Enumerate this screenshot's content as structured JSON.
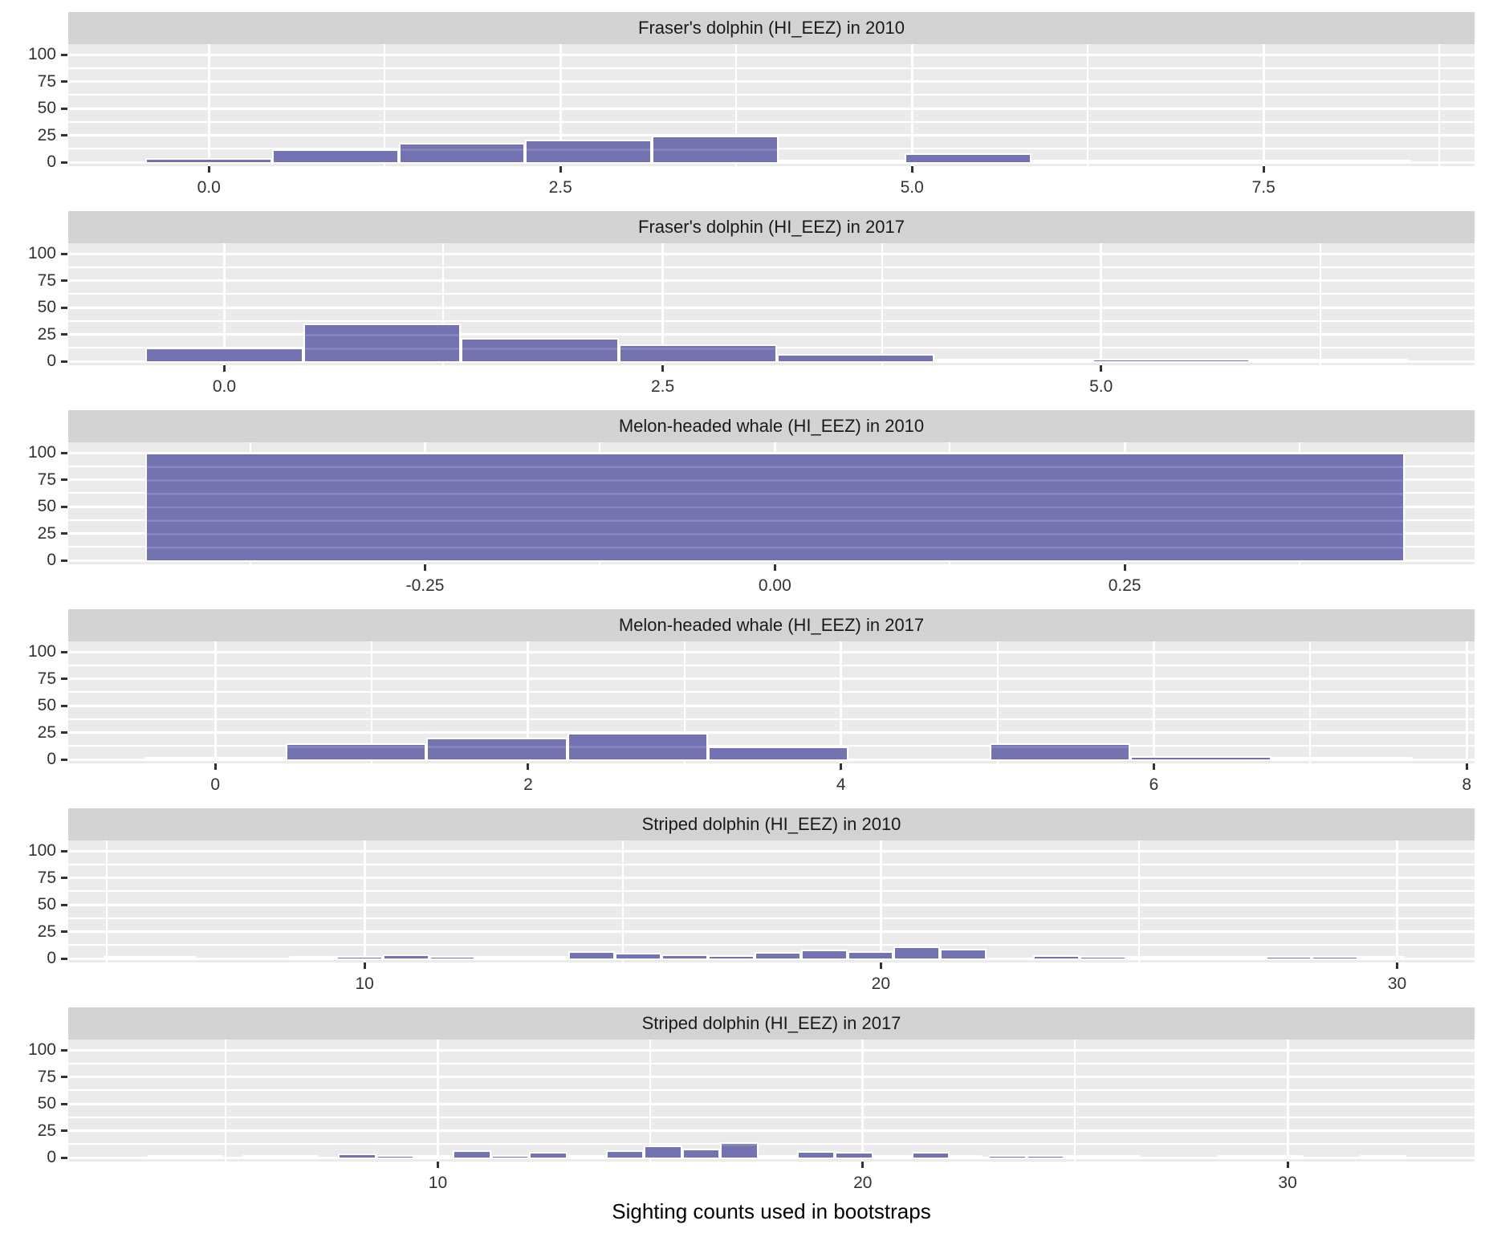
{
  "chart_data": {
    "type": "bar",
    "subtype": "faceted_histogram",
    "title": "",
    "xlabel": "Sighting counts used in bootstraps",
    "ylabel": "",
    "legend": "none",
    "grid": "on",
    "bin_width": 0.9,
    "ylim": [
      -6,
      107
    ],
    "y_ticks": [
      0,
      25,
      50,
      75,
      100
    ],
    "y_tick_labels": [
      "0",
      "25",
      "50",
      "75",
      "100"
    ],
    "y_minor_gridlines": [
      12.5,
      37.5,
      62.5,
      87.5
    ],
    "colors": {
      "bar_fill": "#7473b2",
      "bar_fill_gridline_showthrough": "#8b8abf",
      "bar_outline": "#ffffff",
      "panel_background": "#ebebeb",
      "strip_background": "#d3d3d3",
      "gridline": "#ffffff",
      "axis_text": "#333333",
      "strip_text": "#1a1a1a",
      "axis_title_text": "#000000"
    },
    "panels": [
      {
        "title": "Fraser's dolphin (HI_EEZ) in 2010",
        "xlim": [
          -1.0,
          9.0
        ],
        "x_ticks": [
          {
            "value": 0.0,
            "label": "0.0"
          },
          {
            "value": 2.5,
            "label": "2.5"
          },
          {
            "value": 5.0,
            "label": "5.0"
          },
          {
            "value": 7.5,
            "label": "7.5"
          }
        ],
        "bars": [
          {
            "center": 0.0,
            "count": 4
          },
          {
            "center": 0.9,
            "count": 12
          },
          {
            "center": 1.8,
            "count": 18
          },
          {
            "center": 2.7,
            "count": 21
          },
          {
            "center": 3.6,
            "count": 25
          },
          {
            "center": 5.4,
            "count": 8
          }
        ],
        "zero_runs": [
          [
            4.05,
            4.95
          ],
          [
            5.85,
            8.55
          ]
        ]
      },
      {
        "title": "Fraser's dolphin (HI_EEZ) in 2017",
        "xlim": [
          -0.89,
          7.13
        ],
        "x_ticks": [
          {
            "value": 0.0,
            "label": "0.0"
          },
          {
            "value": 2.5,
            "label": "2.5"
          },
          {
            "value": 5.0,
            "label": "5.0"
          }
        ],
        "bars": [
          {
            "center": 0.0,
            "count": 13
          },
          {
            "center": 0.9,
            "count": 35
          },
          {
            "center": 1.8,
            "count": 22
          },
          {
            "center": 2.7,
            "count": 16
          },
          {
            "center": 3.6,
            "count": 7
          },
          {
            "center": 5.4,
            "count": 2
          }
        ],
        "zero_runs": [
          [
            4.05,
            4.95
          ],
          [
            5.85,
            6.75
          ]
        ]
      },
      {
        "title": "Melon-headed whale (HI_EEZ) in 2010",
        "xlim": [
          -0.505,
          0.5
        ],
        "x_ticks": [
          {
            "value": -0.25,
            "label": "-0.25"
          },
          {
            "value": 0.0,
            "label": "0.00"
          },
          {
            "value": 0.25,
            "label": "0.25"
          }
        ],
        "bars": [
          {
            "center": 0.0,
            "count": 100
          }
        ],
        "zero_runs": []
      },
      {
        "title": "Melon-headed whale (HI_EEZ) in 2017",
        "xlim": [
          -0.94,
          8.05
        ],
        "x_ticks": [
          {
            "value": 0,
            "label": "0"
          },
          {
            "value": 2,
            "label": "2"
          },
          {
            "value": 4,
            "label": "4"
          },
          {
            "value": 6,
            "label": "6"
          },
          {
            "value": 8,
            "label": "8"
          }
        ],
        "bars": [
          {
            "center": 0.9,
            "count": 15
          },
          {
            "center": 1.8,
            "count": 20
          },
          {
            "center": 2.7,
            "count": 25
          },
          {
            "center": 3.6,
            "count": 12
          },
          {
            "center": 5.4,
            "count": 15
          },
          {
            "center": 6.3,
            "count": 3
          }
        ],
        "zero_runs": [
          [
            -0.45,
            0.45
          ],
          [
            6.75,
            7.65
          ]
        ]
      },
      {
        "title": "Striped dolphin (HI_EEZ) in 2010",
        "xlim": [
          4.26,
          31.5
        ],
        "x_ticks": [
          {
            "value": 10,
            "label": "10"
          },
          {
            "value": 20,
            "label": "20"
          },
          {
            "value": 30,
            "label": "30"
          }
        ],
        "bars": [
          {
            "center": 9.9,
            "count": 2
          },
          {
            "center": 10.8,
            "count": 4
          },
          {
            "center": 11.7,
            "count": 2
          },
          {
            "center": 14.4,
            "count": 7
          },
          {
            "center": 15.3,
            "count": 5
          },
          {
            "center": 16.2,
            "count": 4
          },
          {
            "center": 17.1,
            "count": 3
          },
          {
            "center": 18.0,
            "count": 6
          },
          {
            "center": 18.9,
            "count": 8
          },
          {
            "center": 19.8,
            "count": 7
          },
          {
            "center": 20.7,
            "count": 11
          },
          {
            "center": 21.6,
            "count": 9
          },
          {
            "center": 23.4,
            "count": 3
          },
          {
            "center": 24.3,
            "count": 2
          },
          {
            "center": 27.9,
            "count": 2
          },
          {
            "center": 28.8,
            "count": 2
          }
        ],
        "zero_runs": [
          [
            4.95,
            6.75
          ],
          [
            8.55,
            9.45
          ],
          [
            12.15,
            13.95
          ],
          [
            24.75,
            27.45
          ],
          [
            29.25,
            30.15
          ]
        ]
      },
      {
        "title": "Striped dolphin (HI_EEZ) in 2017",
        "xlim": [
          1.3,
          34.4
        ],
        "x_ticks": [
          {
            "value": 10,
            "label": "10"
          },
          {
            "value": 20,
            "label": "20"
          },
          {
            "value": 30,
            "label": "30"
          }
        ],
        "bars": [
          {
            "center": 8.1,
            "count": 4
          },
          {
            "center": 9.0,
            "count": 2
          },
          {
            "center": 10.8,
            "count": 7
          },
          {
            "center": 11.7,
            "count": 2
          },
          {
            "center": 12.6,
            "count": 5
          },
          {
            "center": 14.4,
            "count": 7
          },
          {
            "center": 15.3,
            "count": 11
          },
          {
            "center": 16.2,
            "count": 8
          },
          {
            "center": 17.1,
            "count": 14
          },
          {
            "center": 18.9,
            "count": 6
          },
          {
            "center": 19.8,
            "count": 5
          },
          {
            "center": 21.6,
            "count": 5
          },
          {
            "center": 23.4,
            "count": 2
          },
          {
            "center": 24.3,
            "count": 2
          }
        ],
        "zero_runs": [
          [
            3.15,
            4.95
          ],
          [
            5.4,
            7.2
          ],
          [
            9.45,
            10.35
          ],
          [
            13.05,
            13.95
          ],
          [
            17.55,
            18.45
          ],
          [
            20.25,
            21.15
          ],
          [
            21.9,
            22.8
          ],
          [
            24.75,
            26.55
          ],
          [
            28.35,
            30.35
          ],
          [
            31.7,
            32.8
          ]
        ]
      }
    ]
  }
}
